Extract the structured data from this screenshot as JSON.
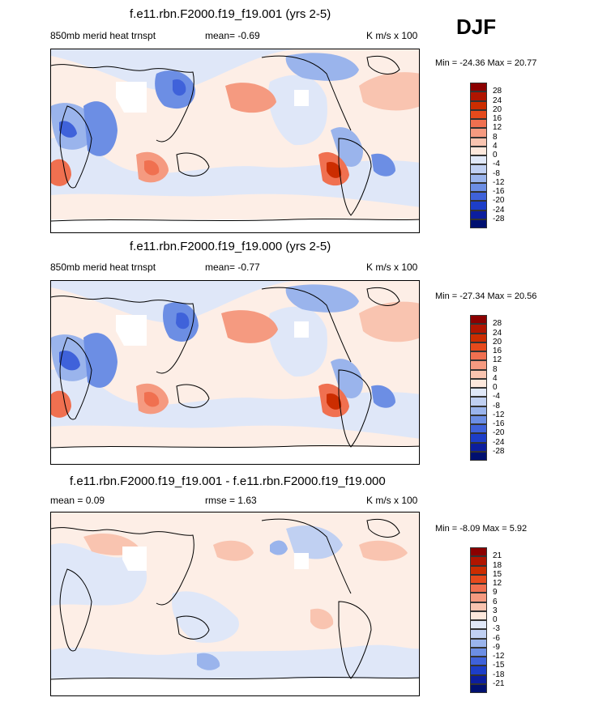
{
  "season": "DJF",
  "panels": [
    {
      "title": "f.e11.rbn.F2000.f19_f19.001 (yrs 2-5)",
      "left_label": "850mb merid heat trnspt",
      "mean_label": "mean=  -0.69",
      "units": "K m/s x 100",
      "minmax": "Min = -24.36 Max =  20.77",
      "colorbar_labels": [
        "28",
        "24",
        "20",
        "16",
        "12",
        "8",
        "4",
        "0",
        "-4",
        "-8",
        "-12",
        "-16",
        "-20",
        "-24",
        "-28"
      ]
    },
    {
      "title": "f.e11.rbn.F2000.f19_f19.000 (yrs 2-5)",
      "left_label": "850mb merid heat trnspt",
      "mean_label": "mean=  -0.77",
      "units": "K m/s x 100",
      "minmax": "Min = -27.34 Max =  20.56",
      "colorbar_labels": [
        "28",
        "24",
        "20",
        "16",
        "12",
        "8",
        "4",
        "0",
        "-4",
        "-8",
        "-12",
        "-16",
        "-20",
        "-24",
        "-28"
      ]
    },
    {
      "title": "f.e11.rbn.F2000.f19_f19.001 - f.e11.rbn.F2000.f19_f19.000",
      "left_label": "mean =   0.09",
      "mean_label": "rmse =   1.63",
      "units": "K m/s x 100",
      "minmax": "Min =  -8.09 Max =   5.92",
      "colorbar_labels": [
        "21",
        "18",
        "15",
        "12",
        "9",
        "6",
        "3",
        "0",
        "-3",
        "-6",
        "-9",
        "-12",
        "-15",
        "-18",
        "-21"
      ]
    }
  ],
  "colors": {
    "scale": [
      "#8b0000",
      "#b01500",
      "#cc2d00",
      "#e64a1c",
      "#f07050",
      "#f59a80",
      "#f9c4b0",
      "#fde8dc",
      "#e0e8f8",
      "#c0d0f2",
      "#9ab4ec",
      "#6c8ee4",
      "#3f62da",
      "#1d3ec8",
      "#0c1e9e",
      "#001070"
    ]
  },
  "chart_data": [
    {
      "type": "heatmap",
      "title": "f.e11.rbn.F2000.f19_f19.001 (yrs 2-5)",
      "variable": "850mb merid heat trnspt",
      "season": "DJF",
      "units": "K m/s x 100",
      "mean": -0.69,
      "min": -24.36,
      "max": 20.77,
      "contour_levels": [
        -28,
        -24,
        -20,
        -16,
        -12,
        -8,
        -4,
        0,
        4,
        8,
        12,
        16,
        20,
        24,
        28
      ]
    },
    {
      "type": "heatmap",
      "title": "f.e11.rbn.F2000.f19_f19.000 (yrs 2-5)",
      "variable": "850mb merid heat trnspt",
      "season": "DJF",
      "units": "K m/s x 100",
      "mean": -0.77,
      "min": -27.34,
      "max": 20.56,
      "contour_levels": [
        -28,
        -24,
        -20,
        -16,
        -12,
        -8,
        -4,
        0,
        4,
        8,
        12,
        16,
        20,
        24,
        28
      ]
    },
    {
      "type": "heatmap",
      "title": "f.e11.rbn.F2000.f19_f19.001 - f.e11.rbn.F2000.f19_f19.000",
      "season": "DJF",
      "units": "K m/s x 100",
      "mean": 0.09,
      "rmse": 1.63,
      "min": -8.09,
      "max": 5.92,
      "contour_levels": [
        -21,
        -18,
        -15,
        -12,
        -9,
        -6,
        -3,
        0,
        3,
        6,
        9,
        12,
        15,
        18,
        21
      ]
    }
  ]
}
